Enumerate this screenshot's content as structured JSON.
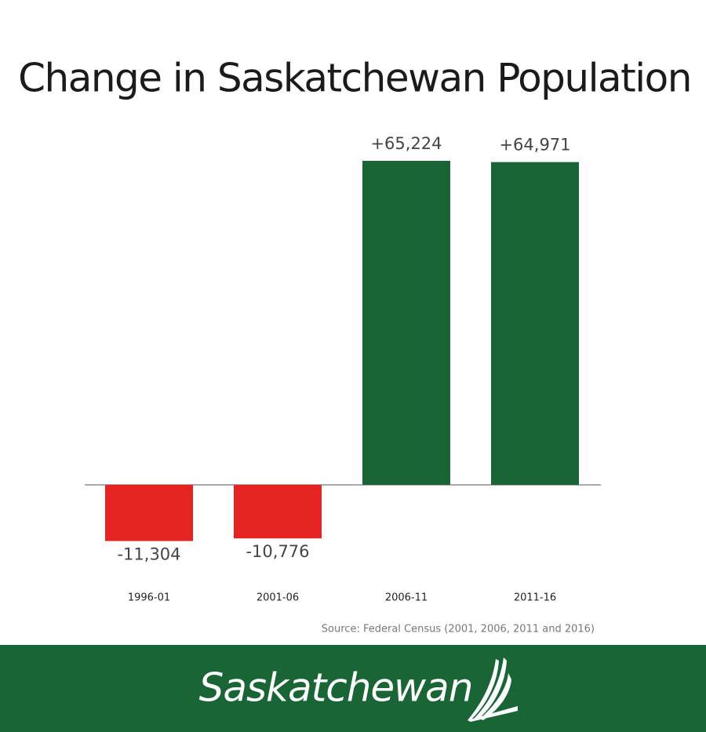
{
  "chart_data": {
    "type": "bar",
    "title": "Change in Saskatchewan Population",
    "categories": [
      "1996-01",
      "2001-06",
      "2006-11",
      "2011-16"
    ],
    "values": [
      -11304,
      -10776,
      65224,
      64971
    ],
    "value_labels": [
      "-11,304",
      "-10,776",
      "+65,224",
      "+64,971"
    ],
    "colors": [
      "#e52421",
      "#e52421",
      "#1a6535",
      "#1a6535"
    ],
    "source": "Source: Federal Census (2001, 2006, 2011 and 2016)"
  },
  "footer": {
    "logo": "Saskatchewan"
  }
}
